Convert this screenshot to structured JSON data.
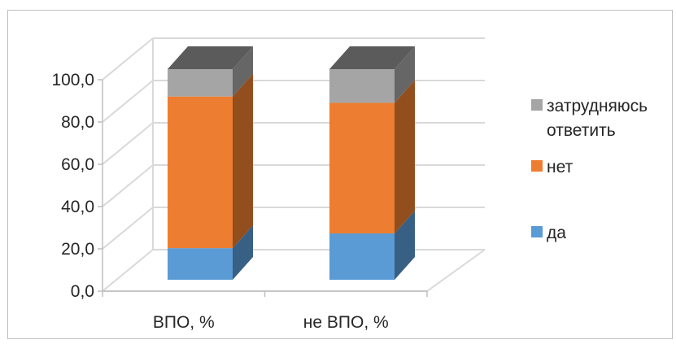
{
  "chart_data": {
    "type": "bar",
    "stacked": true,
    "three_d": true,
    "categories": [
      "ВПО, %",
      "не ВПО, %"
    ],
    "series": [
      {
        "name": "да",
        "values": [
          15.0,
          22.0
        ],
        "color": "#5b9bd5"
      },
      {
        "name": "нет",
        "values": [
          72.0,
          62.0
        ],
        "color": "#ed7d31"
      },
      {
        "name": "затрудняюсь ответить",
        "values": [
          13.0,
          16.0
        ],
        "color": "#a5a5a5"
      }
    ],
    "y_ticks": [
      "0,0",
      "20,0",
      "40,0",
      "60,0",
      "80,0",
      "100,0"
    ],
    "ylim": [
      0,
      100
    ],
    "grid": true,
    "legend_position": "right"
  }
}
